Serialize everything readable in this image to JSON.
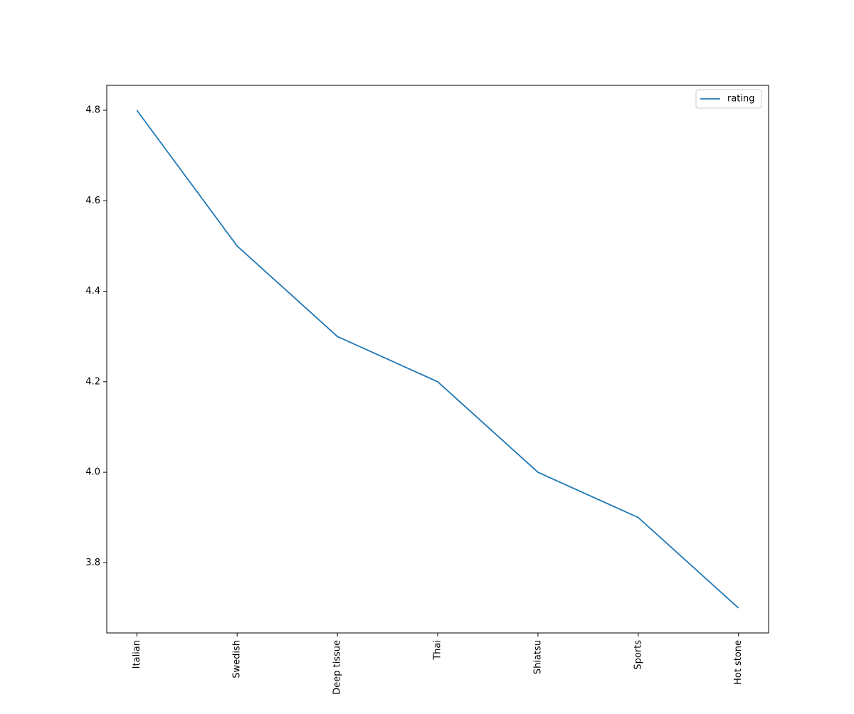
{
  "chart_data": {
    "type": "line",
    "categories": [
      "Italian",
      "Swedish",
      "Deep tissue",
      "Thai",
      "Shiatsu",
      "Sports",
      "Hot stone"
    ],
    "series": [
      {
        "name": "rating",
        "color": "#1f77b4",
        "values": [
          4.8,
          4.5,
          4.3,
          4.2,
          4.0,
          3.9,
          3.7
        ]
      }
    ],
    "ylim": [
      3.645,
      4.855
    ],
    "yticks": [
      3.8,
      {
        "value": 4,
        "label": "4.0"
      },
      4.2,
      4.4,
      4.6,
      4.8
    ],
    "legend": "upper right",
    "grid": false
  }
}
